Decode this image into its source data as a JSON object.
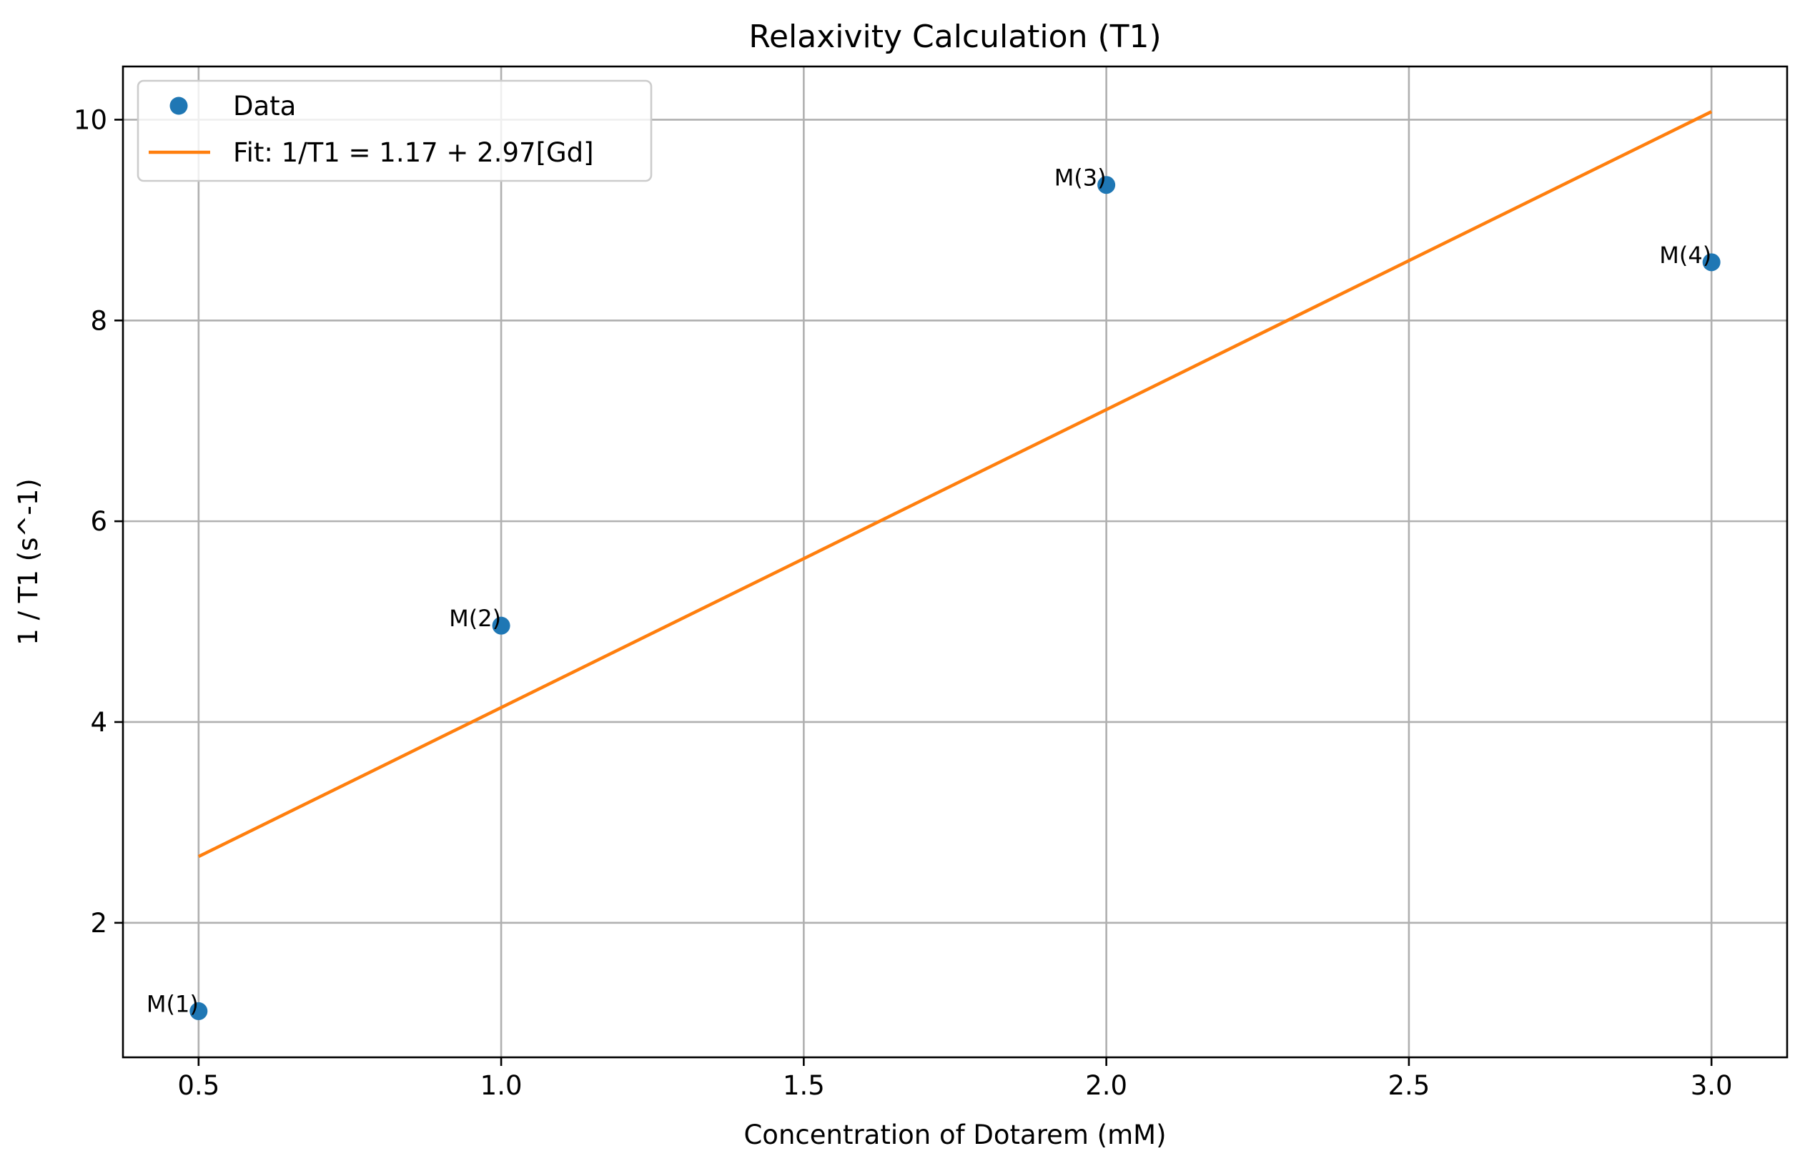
{
  "chart_data": {
    "type": "scatter",
    "title": "Relaxivity Calculation (T1)",
    "xlabel": "Concentration of Dotarem (mM)",
    "ylabel": "1 / T1 (s^-1)",
    "xlim": [
      0.375,
      3.125
    ],
    "ylim": [
      0.66,
      10.53
    ],
    "xticks": [
      0.5,
      1.0,
      1.5,
      2.0,
      2.5,
      3.0
    ],
    "xtick_labels": [
      "0.5",
      "1.0",
      "1.5",
      "2.0",
      "2.5",
      "3.0"
    ],
    "yticks": [
      2,
      4,
      6,
      8,
      10
    ],
    "ytick_labels": [
      "2",
      "4",
      "6",
      "8",
      "10"
    ],
    "grid": true,
    "legend_position": "top-left",
    "series": [
      {
        "name": "Data",
        "kind": "markers",
        "color": "#1f77b4",
        "x": [
          0.5,
          1.0,
          2.0,
          3.0
        ],
        "y": [
          1.12,
          4.96,
          9.35,
          8.58
        ],
        "labels": [
          "M(1)",
          "M(2)",
          "M(3)",
          "M(4)"
        ]
      },
      {
        "name": "Fit: 1/T1 = 1.17 + 2.97[Gd]",
        "kind": "line",
        "color": "#ff7f0e",
        "x": [
          0.5,
          3.0
        ],
        "y": [
          2.66,
          10.08
        ]
      }
    ]
  }
}
